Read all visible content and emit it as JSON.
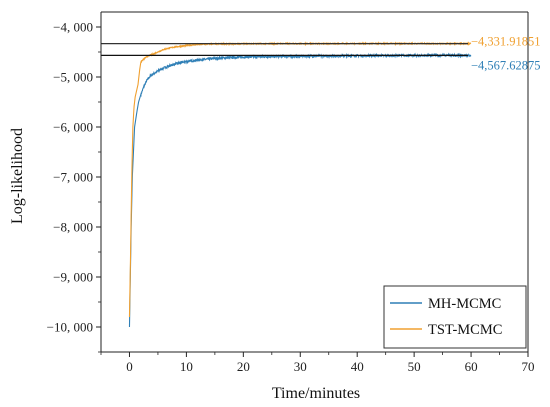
{
  "chart_data": {
    "type": "line",
    "title": "",
    "xlabel": "Time/minutes",
    "ylabel": "Log-likelihood",
    "xlim": [
      -5,
      70
    ],
    "ylim": [
      -10500,
      -3700
    ],
    "x_ticks": [
      0,
      10,
      20,
      30,
      40,
      50,
      60,
      70
    ],
    "x_tick_labels": [
      "0",
      "10",
      "20",
      "30",
      "40",
      "50",
      "60",
      "70"
    ],
    "y_ticks": [
      -4000,
      -5000,
      -6000,
      -7000,
      -8000,
      -9000,
      -10000
    ],
    "y_tick_labels": [
      "−4, 000",
      "−5, 000",
      "−6, 000",
      "−7, 000",
      "−8, 000",
      "−9, 000",
      "−10, 000"
    ],
    "grid": false,
    "legend_position": "bottom-right",
    "series": [
      {
        "name": "MH-MCMC",
        "color": "#2f7fb6",
        "x": [
          0,
          0.15,
          0.3,
          0.5,
          0.7,
          0.9,
          1.1,
          1.3,
          1.6,
          2.0,
          2.5,
          3,
          3.5,
          4,
          5,
          6,
          7,
          8,
          10,
          12,
          15,
          18,
          20,
          25,
          30,
          35,
          40,
          45,
          50,
          55,
          60
        ],
        "y": [
          -10000,
          -9000,
          -8000,
          -7000,
          -6500,
          -6000,
          -5850,
          -5700,
          -5500,
          -5350,
          -5200,
          -5080,
          -5000,
          -4950,
          -4880,
          -4820,
          -4780,
          -4740,
          -4690,
          -4660,
          -4630,
          -4610,
          -4600,
          -4590,
          -4585,
          -4580,
          -4575,
          -4572,
          -4570,
          -4568,
          -4567
        ]
      },
      {
        "name": "TST-MCMC",
        "color": "#f0a030",
        "x": [
          0,
          0.2,
          0.4,
          0.6,
          0.8,
          1.0,
          1.2,
          1.5,
          1.8,
          2.0,
          2.5,
          3,
          3.5,
          4,
          5,
          6,
          7,
          8,
          10,
          12,
          14,
          20,
          25,
          30,
          35,
          40,
          45,
          50,
          55,
          60
        ],
        "y": [
          -9800,
          -8500,
          -7000,
          -6000,
          -5600,
          -5400,
          -5300,
          -5150,
          -4850,
          -4700,
          -4640,
          -4600,
          -4570,
          -4550,
          -4500,
          -4450,
          -4420,
          -4400,
          -4370,
          -4350,
          -4340,
          -4335,
          -4334,
          -4333,
          -4333,
          -4332,
          -4332,
          -4332,
          -4332,
          -4332
        ]
      }
    ],
    "reference_lines": [
      {
        "y": -4331.91851,
        "label": "−4,331.91851",
        "color": "#f0a030",
        "line_color": "#333333"
      },
      {
        "y": -4567.62875,
        "label": "−4,567.62875",
        "color": "#2f7fb6",
        "line_color": "#111111"
      }
    ]
  }
}
